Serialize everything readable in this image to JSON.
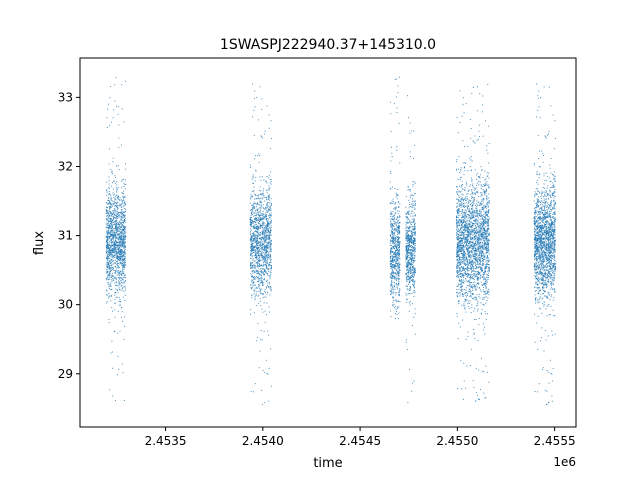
{
  "chart_data": {
    "type": "scatter",
    "title": "1SWASPJ222940.37+145310.0",
    "xlabel": "time",
    "ylabel": "flux",
    "x_offset_label": "1e6",
    "x_unit_multiplier": 1000000,
    "xlim": [
      2.45306,
      2.45561
    ],
    "ylim": [
      28.23,
      33.57
    ],
    "xticks": [
      {
        "value": 2.4535,
        "label": "2.4535"
      },
      {
        "value": 2.454,
        "label": "2.4540"
      },
      {
        "value": 2.4545,
        "label": "2.4545"
      },
      {
        "value": 2.455,
        "label": "2.4550"
      },
      {
        "value": 2.4555,
        "label": "2.4555"
      }
    ],
    "yticks": [
      {
        "value": 29,
        "label": "29"
      },
      {
        "value": 30,
        "label": "30"
      },
      {
        "value": 31,
        "label": "31"
      },
      {
        "value": 32,
        "label": "32"
      },
      {
        "value": 33,
        "label": "33"
      }
    ],
    "grid": false,
    "marker_color": "#1f77b4",
    "seasons": [
      {
        "x_start": 2.453195,
        "x_end": 2.453295,
        "y_center": 30.9,
        "y_spread": 0.38,
        "y_min": 28.6,
        "y_max": 33.3,
        "count": 1400
      },
      {
        "x_start": 2.453935,
        "x_end": 2.454045,
        "y_center": 30.9,
        "y_spread": 0.38,
        "y_min": 28.5,
        "y_max": 33.3,
        "count": 1300
      },
      {
        "x_start": 2.454655,
        "x_end": 2.454705,
        "y_center": 30.8,
        "y_spread": 0.35,
        "y_min": 29.8,
        "y_max": 33.3,
        "count": 650
      },
      {
        "x_start": 2.454735,
        "x_end": 2.454785,
        "y_center": 30.8,
        "y_spread": 0.35,
        "y_min": 28.5,
        "y_max": 33.3,
        "count": 650
      },
      {
        "x_start": 2.454995,
        "x_end": 2.455165,
        "y_center": 30.9,
        "y_spread": 0.42,
        "y_min": 28.55,
        "y_max": 33.2,
        "count": 2300
      },
      {
        "x_start": 2.455395,
        "x_end": 2.455505,
        "y_center": 30.9,
        "y_spread": 0.4,
        "y_min": 28.5,
        "y_max": 33.3,
        "count": 1700
      }
    ]
  }
}
